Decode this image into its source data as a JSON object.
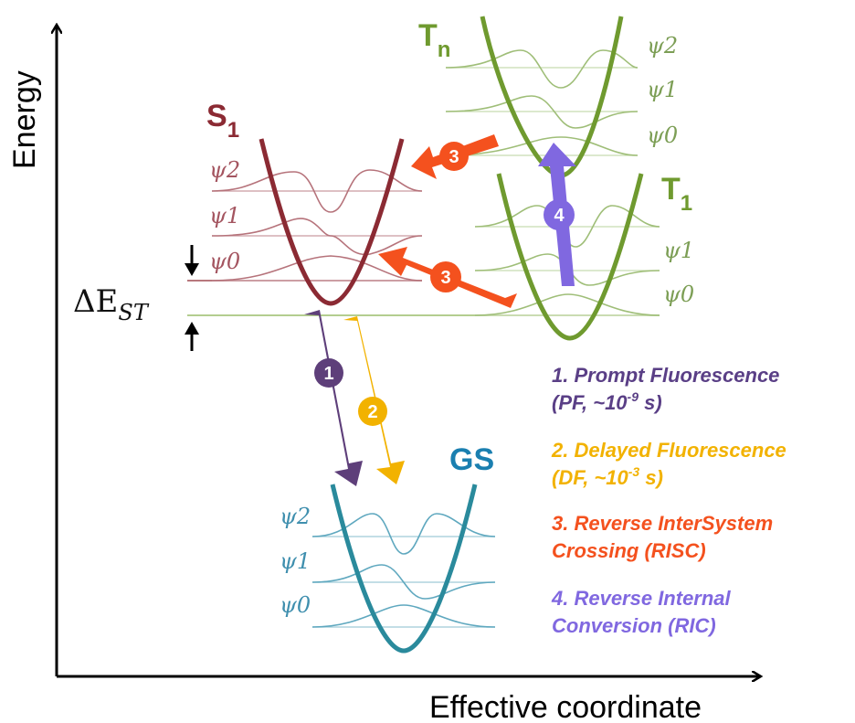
{
  "axes": {
    "y_label": "Energy",
    "x_label": "Effective coordinate"
  },
  "states": {
    "s1": {
      "label": "S",
      "sub": "1",
      "color": "#8b2a33",
      "levels": [
        "ψ2",
        "ψ1",
        "ψ0"
      ]
    },
    "tn": {
      "label": "T",
      "sub": "n",
      "color": "#6f9a2f",
      "levels": [
        "ψ2",
        "ψ1",
        "ψ0"
      ]
    },
    "t1": {
      "label": "T",
      "sub": "1",
      "color": "#6f9a2f",
      "levels": [
        "ψ1",
        "ψ0"
      ]
    },
    "gs": {
      "label": "GS",
      "color": "#1a7fb0",
      "levels": [
        "ψ2",
        "ψ1",
        "ψ0"
      ]
    }
  },
  "delta_est": {
    "symbol": "ΔE",
    "sub": "ST"
  },
  "arrows": {
    "prompt": {
      "number": "1",
      "color": "#5e3f7a"
    },
    "delayed": {
      "number": "2",
      "color": "#f2b200"
    },
    "risc_top": {
      "number": "3",
      "color": "#f4511e"
    },
    "risc_bottom": {
      "number": "3",
      "color": "#f4511e"
    },
    "ric": {
      "number": "4",
      "color": "#8068e0"
    }
  },
  "legend": [
    {
      "line1": "1. Prompt Fluorescence",
      "line2_pre": "(PF, ~10",
      "line2_sup": "-9",
      "line2_post": " s)",
      "color": "#5a3f86"
    },
    {
      "line1": "2. Delayed Fluorescence",
      "line2_pre": "(DF, ~10",
      "line2_sup": "-3",
      "line2_post": " s)",
      "color": "#f2b200"
    },
    {
      "line1": "3. Reverse  InterSystem",
      "line2_pre": "Crossing (RISC)",
      "line2_sup": "",
      "line2_post": "",
      "color": "#f4511e"
    },
    {
      "line1": "4. Reverse Internal",
      "line2_pre": "Conversion (RIC)",
      "line2_sup": "",
      "line2_post": "",
      "color": "#8068e0"
    }
  ]
}
